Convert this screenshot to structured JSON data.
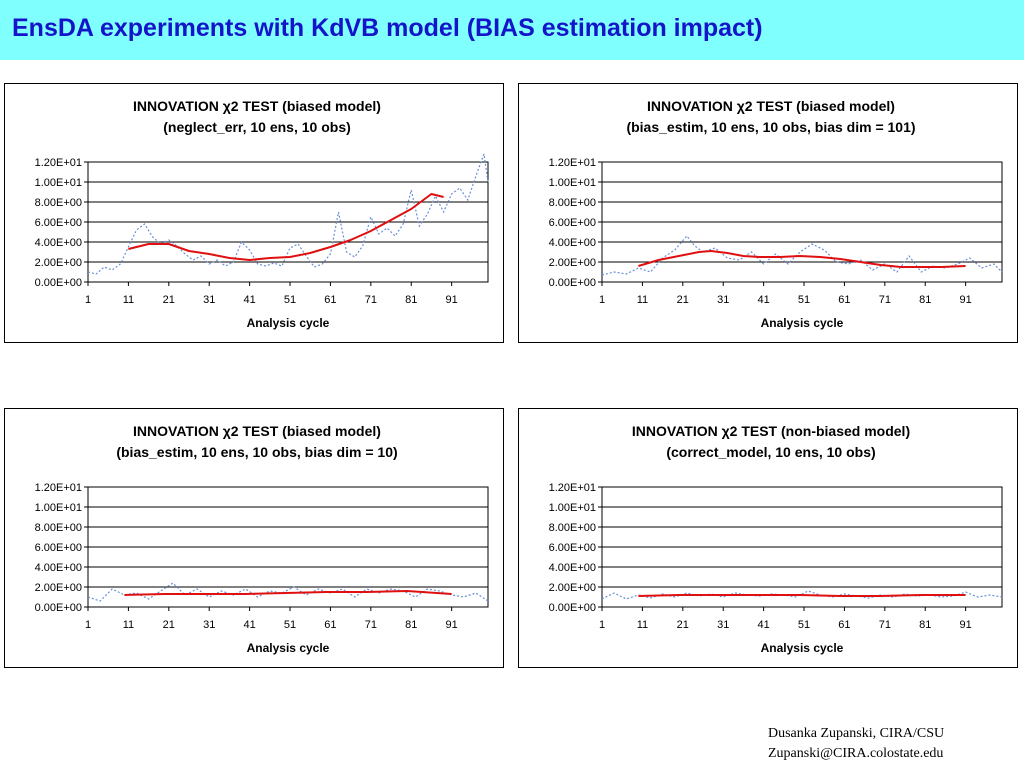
{
  "slide": {
    "title": "EnsDA experiments with KdVB model (BIAS estimation impact)",
    "author_line": "Dusanka Zupanski,  CIRA/CSU",
    "email_line": "Zupanski@CIRA.colostate.edu"
  },
  "colors": {
    "title_bar": "#80ffff",
    "title_text": "#1414c8",
    "smoothed_series": "#e01010",
    "raw_series": "#6a8fd8"
  },
  "chart_data": [
    {
      "type": "line",
      "title": "INNOVATION χ2 TEST (biased model)",
      "subtitle": "(neglect_err,  10 ens, 10 obs)",
      "xlabel": "Analysis cycle",
      "ylabel": "",
      "ylim": [
        0,
        12
      ],
      "xlim": [
        1,
        100
      ],
      "yticks": [
        "1.20E+01",
        "1.00E+01",
        "8.00E+00",
        "6.00E+00",
        "4.00E+00",
        "2.00E+00",
        "0.00E+00"
      ],
      "xticks": [
        "1",
        "11",
        "21",
        "31",
        "41",
        "51",
        "61",
        "71",
        "81",
        "91"
      ],
      "grid": "horizontal",
      "legend": "none",
      "series": [
        {
          "style": "dotted",
          "x": [
            1,
            3,
            5,
            7,
            9,
            11,
            13,
            15,
            17,
            19,
            21,
            23,
            25,
            27,
            29,
            31,
            33,
            35,
            37,
            39,
            41,
            43,
            45,
            47,
            49,
            51,
            53,
            55,
            57,
            59,
            61,
            63,
            65,
            67,
            69,
            71,
            73,
            75,
            77,
            79,
            81,
            83,
            85,
            87,
            89,
            91,
            93,
            95,
            97,
            99,
            100
          ],
          "y": [
            1.0,
            0.8,
            1.5,
            1.2,
            1.8,
            3.5,
            5.2,
            5.8,
            4.5,
            3.8,
            4.2,
            3.6,
            2.8,
            2.2,
            2.6,
            1.8,
            2.2,
            1.6,
            2.0,
            4.0,
            3.2,
            1.8,
            1.6,
            1.9,
            1.6,
            3.4,
            3.8,
            2.6,
            1.5,
            1.8,
            2.8,
            7.0,
            3.0,
            2.5,
            3.6,
            6.5,
            4.8,
            5.4,
            4.6,
            5.8,
            9.2,
            5.6,
            6.8,
            8.6,
            7.0,
            8.8,
            9.4,
            8.2,
            10.6,
            12.8,
            10.0
          ]
        },
        {
          "style": "solid",
          "x": [
            11,
            16,
            21,
            26,
            31,
            36,
            41,
            46,
            51,
            56,
            61,
            66,
            71,
            76,
            81,
            86,
            89
          ],
          "y": [
            3.3,
            3.8,
            3.8,
            3.1,
            2.8,
            2.4,
            2.2,
            2.4,
            2.5,
            2.9,
            3.5,
            4.2,
            5.1,
            6.2,
            7.3,
            8.8,
            8.5
          ]
        }
      ]
    },
    {
      "type": "line",
      "title": "INNOVATION χ2 TEST (biased model)",
      "subtitle": "(bias_estim,  10 ens, 10 obs, bias dim = 101)",
      "xlabel": "Analysis cycle",
      "ylabel": "",
      "ylim": [
        0,
        12
      ],
      "xlim": [
        1,
        100
      ],
      "yticks": [
        "1.20E+01",
        "1.00E+01",
        "8.00E+00",
        "6.00E+00",
        "4.00E+00",
        "2.00E+00",
        "0.00E+00"
      ],
      "xticks": [
        "1",
        "11",
        "21",
        "31",
        "41",
        "51",
        "61",
        "71",
        "81",
        "91"
      ],
      "grid": "horizontal",
      "legend": "none",
      "series": [
        {
          "style": "dotted",
          "x": [
            1,
            4,
            7,
            10,
            13,
            16,
            19,
            22,
            24,
            26,
            29,
            32,
            35,
            38,
            41,
            44,
            47,
            50,
            53,
            56,
            59,
            62,
            65,
            68,
            71,
            74,
            77,
            80,
            83,
            86,
            89,
            92,
            95,
            98,
            100
          ],
          "y": [
            0.7,
            1.0,
            0.8,
            1.4,
            1.0,
            2.4,
            3.2,
            4.6,
            3.6,
            3.0,
            3.4,
            2.4,
            2.2,
            3.0,
            1.8,
            2.8,
            1.8,
            3.0,
            3.8,
            3.2,
            2.0,
            1.8,
            2.2,
            1.2,
            1.8,
            1.0,
            2.6,
            1.0,
            1.6,
            1.4,
            1.8,
            2.4,
            1.4,
            1.8,
            1.0
          ]
        },
        {
          "style": "solid",
          "x": [
            10,
            15,
            20,
            25,
            28,
            32,
            36,
            40,
            45,
            50,
            55,
            60,
            65,
            70,
            75,
            80,
            85,
            91
          ],
          "y": [
            1.6,
            2.2,
            2.6,
            3.0,
            3.1,
            2.9,
            2.6,
            2.5,
            2.5,
            2.6,
            2.5,
            2.3,
            2.0,
            1.7,
            1.5,
            1.5,
            1.5,
            1.6
          ]
        }
      ]
    },
    {
      "type": "line",
      "title": "INNOVATION χ2 TEST (biased model)",
      "subtitle": "(bias_estim,  10 ens, 10 obs, bias dim = 10)",
      "xlabel": "Analysis cycle",
      "ylabel": "",
      "ylim": [
        0,
        12
      ],
      "xlim": [
        1,
        100
      ],
      "yticks": [
        "1.20E+01",
        "1.00E+01",
        "8.00E+00",
        "6.00E+00",
        "4.00E+00",
        "2.00E+00",
        "0.00E+00"
      ],
      "xticks": [
        "1",
        "11",
        "21",
        "31",
        "41",
        "51",
        "61",
        "71",
        "81",
        "91"
      ],
      "grid": "horizontal",
      "legend": "none",
      "series": [
        {
          "style": "dotted",
          "x": [
            1,
            4,
            7,
            10,
            13,
            16,
            19,
            22,
            25,
            28,
            31,
            34,
            37,
            40,
            43,
            46,
            49,
            52,
            55,
            58,
            61,
            64,
            67,
            70,
            73,
            76,
            79,
            82,
            85,
            88,
            91,
            94,
            97,
            100
          ],
          "y": [
            1.0,
            0.6,
            1.8,
            1.2,
            1.4,
            0.8,
            1.6,
            2.4,
            1.2,
            1.8,
            1.0,
            1.6,
            1.2,
            1.8,
            1.0,
            1.6,
            1.4,
            2.0,
            1.2,
            1.8,
            1.4,
            1.8,
            1.0,
            1.8,
            1.4,
            1.8,
            1.6,
            1.0,
            1.8,
            1.6,
            1.2,
            1.0,
            1.4,
            0.6
          ]
        },
        {
          "style": "solid",
          "x": [
            10,
            20,
            30,
            40,
            50,
            60,
            70,
            80,
            91
          ],
          "y": [
            1.2,
            1.3,
            1.3,
            1.3,
            1.4,
            1.5,
            1.5,
            1.6,
            1.3
          ]
        }
      ]
    },
    {
      "type": "line",
      "title": "INNOVATION χ2 TEST (non-biased model)",
      "subtitle": "(correct_model,  10 ens, 10 obs)",
      "xlabel": "Analysis cycle",
      "ylabel": "",
      "ylim": [
        0,
        12
      ],
      "xlim": [
        1,
        100
      ],
      "yticks": [
        "1.20E+01",
        "1.00E+01",
        "8.00E+00",
        "6.00E+00",
        "4.00E+00",
        "2.00E+00",
        "0.00E+00"
      ],
      "xticks": [
        "1",
        "11",
        "21",
        "31",
        "41",
        "51",
        "61",
        "71",
        "81",
        "91"
      ],
      "grid": "horizontal",
      "legend": "none",
      "series": [
        {
          "style": "dotted",
          "x": [
            1,
            4,
            7,
            10,
            13,
            16,
            19,
            22,
            25,
            28,
            31,
            34,
            37,
            40,
            43,
            46,
            49,
            52,
            55,
            58,
            61,
            64,
            67,
            70,
            73,
            76,
            79,
            82,
            85,
            88,
            91,
            94,
            97,
            100
          ],
          "y": [
            0.8,
            1.4,
            0.8,
            1.2,
            0.9,
            1.3,
            1.0,
            1.4,
            1.1,
            1.3,
            1.0,
            1.4,
            1.2,
            1.1,
            1.3,
            1.2,
            1.0,
            1.6,
            1.2,
            1.0,
            1.3,
            1.1,
            0.9,
            1.2,
            1.0,
            1.3,
            1.1,
            1.2,
            1.0,
            1.1,
            1.5,
            1.0,
            1.2,
            1.0
          ]
        },
        {
          "style": "solid",
          "x": [
            10,
            20,
            30,
            40,
            50,
            60,
            70,
            80,
            91
          ],
          "y": [
            1.1,
            1.2,
            1.2,
            1.2,
            1.2,
            1.1,
            1.1,
            1.2,
            1.2
          ]
        }
      ]
    }
  ]
}
